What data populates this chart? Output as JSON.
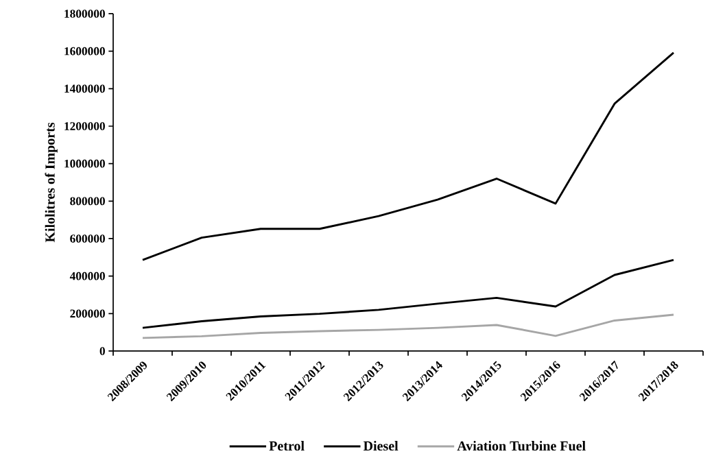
{
  "chart_data": {
    "type": "line",
    "ylabel": "Kilolitres of Imports",
    "categories": [
      "2008/2009",
      "2009/2010",
      "2010/2011",
      "2011/2012",
      "2012/2013",
      "2013/2014",
      "2014/2015",
      "2015/2016",
      "2016/2017",
      "2017/2018"
    ],
    "series": [
      {
        "name": "Petrol",
        "color": "#000000",
        "values": [
          486000,
          605000,
          652000,
          652000,
          720000,
          808000,
          920000,
          787000,
          1320000,
          1592000
        ]
      },
      {
        "name": "Diesel",
        "color": "#000000",
        "values": [
          124000,
          159000,
          185000,
          199000,
          220000,
          253000,
          284000,
          238000,
          406000,
          486000
        ]
      },
      {
        "name": "Aviation Turbine Fuel",
        "color": "#a6a6a6",
        "values": [
          70000,
          79000,
          97000,
          106000,
          113000,
          124000,
          139000,
          81000,
          163000,
          194000
        ]
      }
    ],
    "ylim": [
      0,
      1800000
    ],
    "yticks": [
      0,
      200000,
      400000,
      600000,
      800000,
      1000000,
      1200000,
      1400000,
      1600000,
      1800000
    ],
    "grid": false,
    "legend": "bottom",
    "marker": "none",
    "line_style": "solid"
  }
}
